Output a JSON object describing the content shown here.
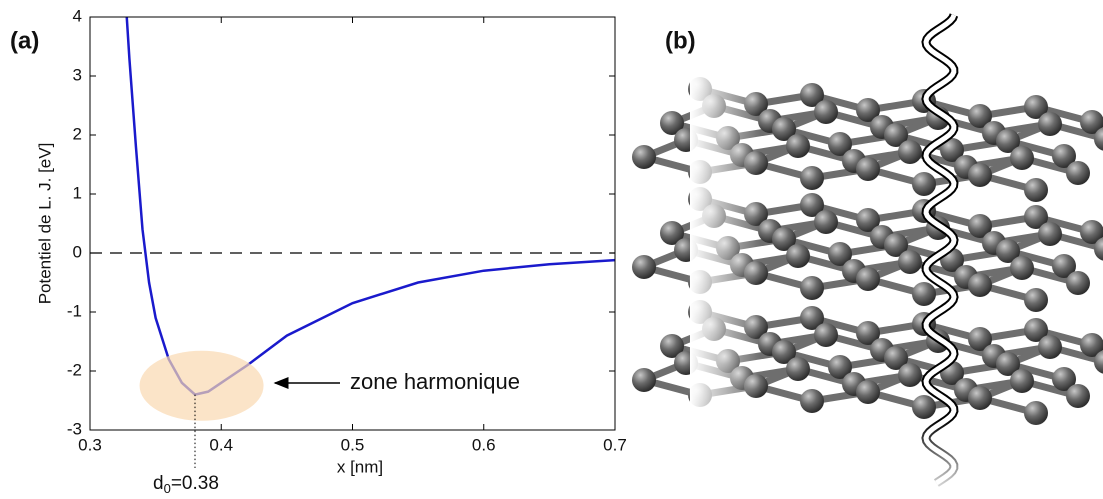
{
  "chart_data": {
    "type": "line",
    "panel_label": "(a)",
    "xlabel": "x [nm]",
    "ylabel": "Potentiel de L. J. [eV]",
    "x": [
      0.328,
      0.33,
      0.335,
      0.34,
      0.345,
      0.35,
      0.36,
      0.37,
      0.38,
      0.39,
      0.4,
      0.42,
      0.45,
      0.5,
      0.55,
      0.6,
      0.65,
      0.7
    ],
    "series": [
      {
        "color": "#1a1acc",
        "values": [
          4,
          3.3,
          1.8,
          0.4,
          -0.5,
          -1.1,
          -1.8,
          -2.2,
          -2.4,
          -2.35,
          -2.2,
          -1.9,
          -1.4,
          -0.85,
          -0.5,
          -0.3,
          -0.19,
          -0.12
        ]
      }
    ],
    "xlim": [
      0.3,
      0.7
    ],
    "xticks": [
      0.3,
      0.4,
      0.5,
      0.6,
      0.7
    ],
    "ylim": [
      -3,
      4
    ],
    "yticks": [
      -3,
      -2,
      -1,
      0,
      1,
      2,
      3,
      4
    ],
    "hline": 0,
    "vline_x": 0.38,
    "highlight": {
      "x": 0.385,
      "y": -2.25,
      "color": "#f9d9b0"
    },
    "annotation": "zone harmonique",
    "d0_label": [
      "d",
      "0",
      "=0.38"
    ]
  },
  "image_panel": {
    "panel_label": "(b)"
  }
}
